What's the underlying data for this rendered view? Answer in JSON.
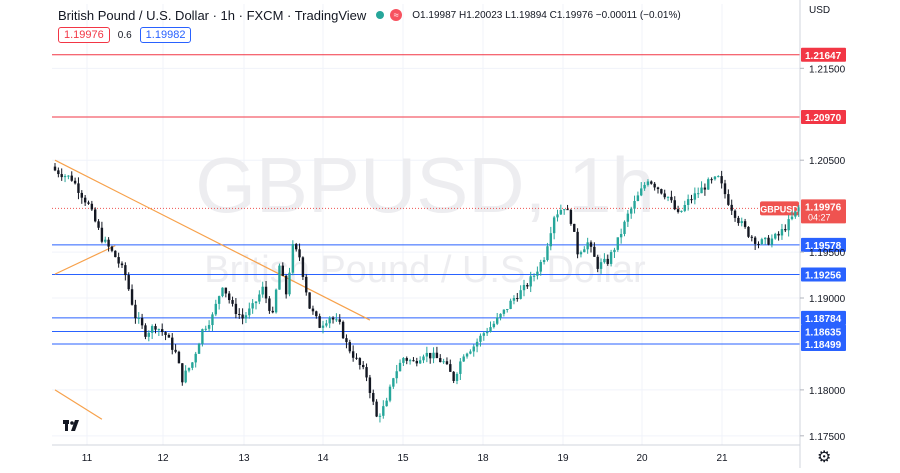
{
  "header": {
    "title": "British Pound / U.S. Dollar · 1h · FXCM · TradingView",
    "open": "O1.19987",
    "high": "H1.20023",
    "low": "L1.19894",
    "close": "C1.19976",
    "change": "−0.00011 (−0.01%)",
    "sell_price": "1.19976",
    "spread": "0.6",
    "buy_price": "1.19982"
  },
  "currency_label": "USD",
  "watermark": {
    "symbol": "GBPUSD, 1h",
    "name": "British Pound / U.S. Dollar"
  },
  "colors": {
    "up": "#26a69a",
    "down": "#131722",
    "red_level": "#f23645",
    "blue_level": "#2962ff",
    "trendline": "#f7a14b",
    "price_label": "#ef5350"
  },
  "chart_data": {
    "type": "candlestick",
    "symbol": "GBPUSD",
    "timeframe": "1h",
    "price_range": [
      1.174,
      1.222
    ],
    "x_tick_labels": [
      "11",
      "12",
      "13",
      "14",
      "15",
      "18",
      "19",
      "20",
      "21"
    ],
    "y_tick_labels": [
      "1.21500",
      "1.20500",
      "1.19500",
      "1.19000",
      "1.18000",
      "1.17500"
    ],
    "last_price": {
      "symbol_label": "GBPUSD",
      "value": "1.19976",
      "countdown": "04:27"
    },
    "horizontal_levels": [
      {
        "value": "1.21647",
        "color": "red"
      },
      {
        "value": "1.20970",
        "color": "red"
      },
      {
        "value": "1.19578",
        "color": "blue"
      },
      {
        "value": "1.19256",
        "color": "blue"
      },
      {
        "value": "1.18784",
        "color": "blue"
      },
      {
        "value": "1.18635",
        "color": "blue"
      },
      {
        "value": "1.18499",
        "color": "blue"
      }
    ],
    "trendlines": [
      {
        "from_bar": 0,
        "from_price": 1.205,
        "to_bar": 94,
        "to_price": 1.1876
      },
      {
        "from_bar": 0,
        "from_price": 1.1926,
        "to_bar": 18,
        "to_price": 1.1957
      },
      {
        "from_bar": 0,
        "from_price": 1.18,
        "to_bar": 14,
        "to_price": 1.1768
      }
    ],
    "close_path": [
      [
        0,
        1.2039
      ],
      [
        5,
        1.203
      ],
      [
        10,
        1.2001
      ],
      [
        14,
        1.1965
      ],
      [
        18,
        1.1945
      ],
      [
        21,
        1.1925
      ],
      [
        24,
        1.188
      ],
      [
        27,
        1.1862
      ],
      [
        30,
        1.187
      ],
      [
        33,
        1.186
      ],
      [
        36,
        1.184
      ],
      [
        38,
        1.1812
      ],
      [
        41,
        1.183
      ],
      [
        44,
        1.1865
      ],
      [
        47,
        1.188
      ],
      [
        50,
        1.1915
      ],
      [
        53,
        1.189
      ],
      [
        56,
        1.1878
      ],
      [
        59,
        1.189
      ],
      [
        62,
        1.191
      ],
      [
        65,
        1.188
      ],
      [
        67,
        1.1935
      ],
      [
        69,
        1.1905
      ],
      [
        71,
        1.1955
      ],
      [
        73,
        1.1945
      ],
      [
        76,
        1.189
      ],
      [
        79,
        1.187
      ],
      [
        82,
        1.188
      ],
      [
        85,
        1.187
      ],
      [
        87,
        1.185
      ],
      [
        90,
        1.1832
      ],
      [
        93,
        1.1815
      ],
      [
        96,
        1.177
      ],
      [
        99,
        1.1785
      ],
      [
        101,
        1.1815
      ],
      [
        104,
        1.1835
      ],
      [
        107,
        1.183
      ],
      [
        110,
        1.184
      ],
      [
        113,
        1.1836
      ],
      [
        116,
        1.183
      ],
      [
        119,
        1.1812
      ],
      [
        122,
        1.184
      ],
      [
        125,
        1.1848
      ],
      [
        128,
        1.1862
      ],
      [
        131,
        1.1872
      ],
      [
        134,
        1.1885
      ],
      [
        137,
        1.19
      ],
      [
        140,
        1.191
      ],
      [
        143,
        1.1925
      ],
      [
        146,
        1.1945
      ],
      [
        149,
        1.199
      ],
      [
        152,
        1.2
      ],
      [
        154,
        1.1985
      ],
      [
        156,
        1.195
      ],
      [
        159,
        1.196
      ],
      [
        162,
        1.1935
      ],
      [
        165,
        1.194
      ],
      [
        168,
        1.1962
      ],
      [
        171,
        1.199
      ],
      [
        174,
        1.201
      ],
      [
        177,
        1.203
      ],
      [
        180,
        1.202
      ],
      [
        183,
        1.201
      ],
      [
        186,
        1.199
      ],
      [
        189,
        1.2005
      ],
      [
        192,
        1.2015
      ],
      [
        195,
        1.2025
      ],
      [
        198,
        1.203
      ],
      [
        201,
        1.2005
      ],
      [
        204,
        1.1985
      ],
      [
        207,
        1.197
      ],
      [
        210,
        1.196
      ],
      [
        213,
        1.1962
      ],
      [
        216,
        1.1968
      ],
      [
        219,
        1.1982
      ],
      [
        221,
        1.1992
      ],
      [
        222,
        1.1998
      ]
    ]
  }
}
